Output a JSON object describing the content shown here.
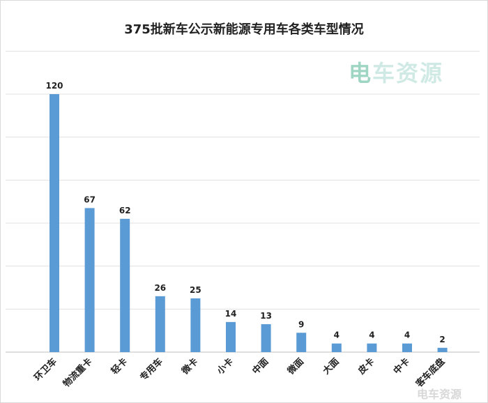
{
  "watermark": {
    "main": "电车资源",
    "corner": "电车资源"
  },
  "colors": {
    "bar": "#5b9bd5",
    "grid": "#e0e0e0",
    "axis": "#bfbfbf"
  },
  "chart_data": {
    "type": "bar",
    "title": "375批新车公示新能源专用车各类车型情况",
    "xlabel": "",
    "ylabel": "",
    "categories": [
      "环卫车",
      "物流重卡",
      "轻卡",
      "专用车",
      "微卡",
      "小卡",
      "中面",
      "微面",
      "大面",
      "皮卡",
      "中卡",
      "客车底盘"
    ],
    "values": [
      120,
      67,
      62,
      26,
      25,
      14,
      13,
      9,
      4,
      4,
      4,
      2
    ],
    "ylim": [
      0,
      140
    ],
    "grid": true,
    "data_labels": true,
    "legend": "none"
  }
}
